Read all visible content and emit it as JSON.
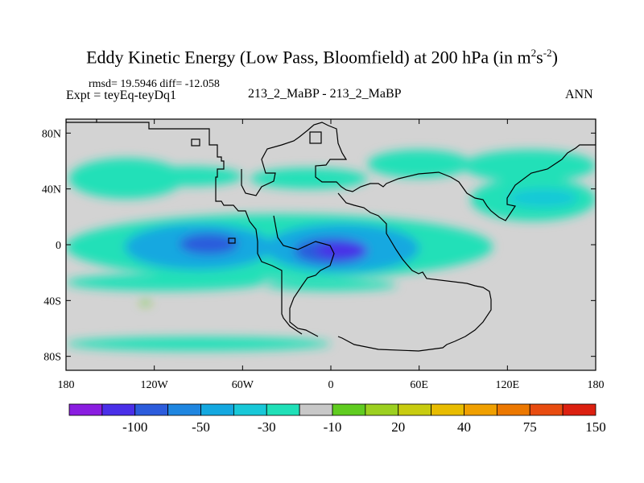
{
  "header": {
    "title_main": "Eddy Kinetic Energy (Low Pass, Bloomfield) at 200 hPa (in m",
    "title_sup1": "2",
    "title_mid": "s",
    "title_sup2": "-2",
    "title_end": ")",
    "rmsd": "rmsd= 19.5946 diff= -12.058",
    "expt": "Expt = teyEq-teyDq1",
    "center": "213_2_MaBP - 213_2_MaBP",
    "right": "ANN"
  },
  "colors": {
    "land_background": "#d3d3d3",
    "coast": "#000000",
    "levels": [
      "#8a1de0",
      "#4a2fe8",
      "#2c5cdc",
      "#1f86e0",
      "#14a8e0",
      "#18c8d8",
      "#20e0b8",
      "#c8c8c8",
      "#60cc20",
      "#9cd020",
      "#c8cc10",
      "#e8bc00",
      "#f0a000",
      "#ec7800",
      "#e84c10",
      "#dc2010"
    ]
  },
  "chart_data": {
    "type": "heatmap",
    "title": "Eddy Kinetic Energy (Low Pass, Bloomfield) at 200 hPa (in m^2 s^-2)",
    "xlabel": "",
    "ylabel": "",
    "xlim": [
      -180,
      180
    ],
    "ylim": [
      -90,
      90
    ],
    "x_ticks": [
      {
        "value": -180,
        "label": "180"
      },
      {
        "value": -120,
        "label": "120W"
      },
      {
        "value": -60,
        "label": "60W"
      },
      {
        "value": 0,
        "label": "0"
      },
      {
        "value": 60,
        "label": "60E"
      },
      {
        "value": 120,
        "label": "120E"
      },
      {
        "value": 180,
        "label": "180"
      }
    ],
    "y_ticks": [
      {
        "value": 80,
        "label": "80N"
      },
      {
        "value": 40,
        "label": "40N"
      },
      {
        "value": 0,
        "label": "0"
      },
      {
        "value": -40,
        "label": "40S"
      },
      {
        "value": -80,
        "label": "80S"
      }
    ],
    "colorbar": {
      "boundaries": [
        -150,
        -100,
        -75,
        -50,
        -40,
        -30,
        -20,
        -10,
        10,
        20,
        30,
        40,
        50,
        75,
        100,
        150
      ],
      "labels": [
        {
          "value": -100,
          "label": "-100"
        },
        {
          "value": -50,
          "label": "-50"
        },
        {
          "value": -30,
          "label": "-30"
        },
        {
          "value": -10,
          "label": "-10"
        },
        {
          "value": 20,
          "label": "20"
        },
        {
          "value": 40,
          "label": "40"
        },
        {
          "value": 75,
          "label": "75"
        },
        {
          "value": 150,
          "label": "150"
        }
      ]
    },
    "regions": [
      {
        "name": "north-pacific-jet",
        "lon_range": [
          -178,
          -100
        ],
        "lat_range": [
          33,
          62
        ],
        "level": -15
      },
      {
        "name": "north-pacific-jet-ext",
        "lon_range": [
          -130,
          -60
        ],
        "lat_range": [
          42,
          56
        ],
        "level": -15
      },
      {
        "name": "north-atlantic-band",
        "lon_range": [
          -55,
          25
        ],
        "lat_range": [
          40,
          55
        ],
        "level": -15
      },
      {
        "name": "north-atlantic-ridge",
        "lon_range": [
          25,
          95
        ],
        "lat_range": [
          48,
          68
        ],
        "level": -15
      },
      {
        "name": "north-asian-band",
        "lon_range": [
          90,
          180
        ],
        "lat_range": [
          45,
          68
        ],
        "level": -15
      },
      {
        "name": "west-pacific-band",
        "lon_range": [
          95,
          180
        ],
        "lat_range": [
          17,
          48
        ],
        "level": -15
      },
      {
        "name": "west-pacific-core",
        "lon_range": [
          120,
          168
        ],
        "lat_range": [
          27,
          40
        ],
        "level": -25
      },
      {
        "name": "equatorial-band",
        "lon_range": [
          -180,
          110
        ],
        "lat_range": [
          -25,
          22
        ],
        "level": -15
      },
      {
        "name": "equatorial-core-pacific",
        "lon_range": [
          -140,
          -40
        ],
        "lat_range": [
          -18,
          15
        ],
        "level": -35
      },
      {
        "name": "equatorial-core-atlantic",
        "lon_range": [
          -45,
          60
        ],
        "lat_range": [
          -20,
          15
        ],
        "level": -35
      },
      {
        "name": "east-pacific-minimum",
        "lon_range": [
          -103,
          -63
        ],
        "lat_range": [
          -7,
          8
        ],
        "level": -60
      },
      {
        "name": "africa-minimum",
        "lon_range": [
          -25,
          25
        ],
        "lat_range": [
          -14,
          5
        ],
        "level": -60
      },
      {
        "name": "africa-core",
        "lon_range": [
          -10,
          25
        ],
        "lat_range": [
          -10,
          2
        ],
        "level": -85
      },
      {
        "name": "south-pacific-band",
        "lon_range": [
          -180,
          -45
        ],
        "lat_range": [
          -33,
          -21
        ],
        "level": -15
      },
      {
        "name": "south-atlantic-band",
        "lon_range": [
          -45,
          45
        ],
        "lat_range": [
          -33,
          -25
        ],
        "level": -15
      },
      {
        "name": "southern-ocean-band",
        "lon_range": [
          -180,
          0
        ],
        "lat_range": [
          -76,
          -66
        ],
        "level": -15
      },
      {
        "name": "south-patch-positive",
        "lon_range": [
          -130,
          -122
        ],
        "lat_range": [
          -43,
          -40
        ],
        "level": 15
      }
    ]
  }
}
